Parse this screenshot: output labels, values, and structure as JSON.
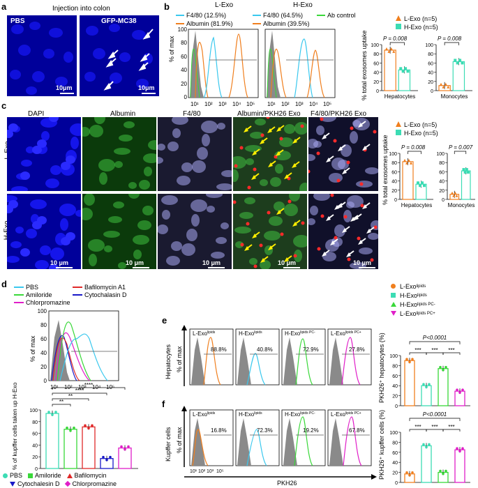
{
  "panels": {
    "a": {
      "label": "a",
      "title": "Injection into colon",
      "images": [
        {
          "label": "PBS",
          "scale": "10μm"
        },
        {
          "label": "GFP-MC38",
          "scale": "10μm"
        }
      ]
    },
    "b": {
      "label": "b",
      "flow": [
        {
          "title": "L-Exo",
          "legend": [
            "F4/80 (12.5%)",
            "Albumin (81.9%)"
          ]
        },
        {
          "title": "H-Exo",
          "legend": [
            "F4/80 (64.5%)",
            "Albumin  (39.5%)"
          ]
        }
      ],
      "ab_control": "Ab control",
      "ylabel": "% of max",
      "yticks": [
        "100",
        "80",
        "60",
        "40",
        "20",
        "0"
      ],
      "xticks": [
        "10¹",
        "10²",
        "10³",
        "10⁴",
        "10⁵"
      ],
      "legend": [
        "L-Exo (n=5)",
        "H-Exo (n=5)"
      ],
      "ylabel_bar": "% total exosomes uptake",
      "groups": [
        "Hepatocytes",
        "Monocytes"
      ],
      "pvals": [
        "P = 0.008",
        "P = 0.008"
      ],
      "yticks_left": [
        "100",
        "80",
        "60",
        "40",
        "20",
        "0"
      ],
      "yticks_right": [
        "100",
        "80",
        "60",
        "40",
        "20",
        "0"
      ]
    },
    "c": {
      "label": "c",
      "columns": [
        "DAPI",
        "Albumin",
        "F4/80",
        "Albumin/PKH26 Exo",
        "F4/80/PKH26 Exo"
      ],
      "rows": [
        "L-Exo",
        "H-Exo"
      ],
      "scale": "10 μm",
      "legend": [
        "L-Exo (n=5)",
        "H-Exo (n=5)"
      ],
      "ylabel_bar": "% total exosomes uptake",
      "groups": [
        "Hepatocytes",
        "Monocytes"
      ],
      "pvals": [
        "P = 0.008",
        "P = 0.007"
      ],
      "yticks_left": [
        "100",
        "80",
        "60",
        "40",
        "20",
        "0"
      ],
      "yticks_right": [
        "100",
        "80",
        "60",
        "40",
        "20",
        "0"
      ]
    },
    "d": {
      "label": "d",
      "legend": [
        "PBS",
        "Amiloride",
        "Chlorpromazine",
        "Bafilomycin A1",
        "Cytochalasin D"
      ],
      "ylabel": "% of max",
      "yticks": [
        "100",
        "80",
        "60",
        "40",
        "20",
        "0"
      ],
      "xticks": [
        "10¹",
        "10²",
        "10³",
        "10⁴",
        "10⁵"
      ],
      "bar_ylabel": "% of kupffer cells taken up H-Exo",
      "bar_yticks": [
        "100",
        "80",
        "60",
        "40",
        "20",
        "0"
      ],
      "sig": [
        "****",
        "****",
        "**",
        "**"
      ],
      "bottom_legend": [
        "PBS",
        "Amiloride",
        "Bafilomycin",
        "Cytochalesin  D",
        "Chlorpromazine"
      ]
    },
    "e": {
      "label": "e",
      "row_label": "Hepatocytes",
      "ylabel": "% of max",
      "hist": [
        {
          "title": "L-Exo",
          "sup": "lipids",
          "pct": "88.8%"
        },
        {
          "title": "H-Exo",
          "sup": "lipids",
          "pct": "40.8%"
        },
        {
          "title": "H-Exo",
          "sup": "lipids PC-",
          "pct": "72.9%"
        },
        {
          "title": "L-Exo",
          "sup": "lipids PC+",
          "pct": "27.8%"
        }
      ],
      "legend": [
        {
          "base": "L-Exo",
          "sup": "lipids"
        },
        {
          "base": "H-Exo",
          "sup": "lipids"
        },
        {
          "base": "H-Exo",
          "sup": "lipids PC-"
        },
        {
          "base": "L-Exo",
          "sup": "lipids PC+"
        }
      ],
      "pval": "P<0.0001",
      "sig": [
        "***",
        "***",
        "***"
      ],
      "bar_ylabel": "PKH26⁺ hepatocytes (%)",
      "yticks": [
        "100",
        "80",
        "60",
        "40",
        "20",
        "0"
      ]
    },
    "f": {
      "label": "f",
      "row_label": "Kupffer cells",
      "ylabel": "% of max",
      "xlabel": "PKH26",
      "xticks": [
        "10¹",
        "10²",
        "10³",
        "10⁵"
      ],
      "hist": [
        {
          "title": "L-Exo",
          "sup": "lipids",
          "pct": "16.8%"
        },
        {
          "title": "H-Exo",
          "sup": "lipids",
          "pct": "72.3%"
        },
        {
          "title": "H-Exo",
          "sup": "lipids PC-",
          "pct": "19.2%"
        },
        {
          "title": "L-Exo",
          "sup": "lipids PC+",
          "pct": "67.8%"
        }
      ],
      "pval": "P<0.0001",
      "sig": [
        "***",
        "***",
        "***"
      ],
      "bar_ylabel": "PKH26⁺ kupffer cells (%)",
      "yticks": [
        "100",
        "80",
        "60",
        "40",
        "20",
        "0"
      ]
    }
  },
  "colors": {
    "orange": "#f07f1e",
    "teal": "#3cdcb4",
    "cyan": "#39c8ee",
    "green": "#39d839",
    "magenta": "#e01ec8",
    "red": "#e02828",
    "blue": "#1818c8",
    "navy": "#00009a",
    "gray": "#8a8a8a"
  },
  "chart_data": [
    {
      "type": "bar",
      "panel": "b-hepatocytes",
      "categories": [
        "L-Exo",
        "H-Exo"
      ],
      "values": [
        88,
        45
      ],
      "ylim": [
        0,
        100
      ]
    },
    {
      "type": "bar",
      "panel": "b-monocytes",
      "categories": [
        "L-Exo",
        "H-Exo"
      ],
      "values": [
        11,
        63
      ],
      "ylim": [
        0,
        100
      ]
    },
    {
      "type": "bar",
      "panel": "c-hepatocytes",
      "categories": [
        "L-Exo",
        "H-Exo"
      ],
      "values": [
        82,
        33
      ],
      "ylim": [
        0,
        100
      ]
    },
    {
      "type": "bar",
      "panel": "c-monocytes",
      "categories": [
        "L-Exo",
        "H-Exo"
      ],
      "values": [
        11,
        62
      ],
      "ylim": [
        0,
        100
      ]
    },
    {
      "type": "bar",
      "panel": "d",
      "categories": [
        "PBS",
        "Amiloride",
        "Bafilomycin",
        "Cytochalesin  D",
        "Chlorpromazine"
      ],
      "values": [
        94,
        67,
        71,
        17,
        35
      ],
      "ylim": [
        0,
        100
      ]
    },
    {
      "type": "bar",
      "panel": "e",
      "categories": [
        "L-Exo lipids",
        "H-Exo lipids",
        "H-Exo lipids PC-",
        "L-Exo lipids PC+"
      ],
      "values": [
        90,
        40,
        74,
        29
      ],
      "ylim": [
        0,
        100
      ]
    },
    {
      "type": "bar",
      "panel": "f",
      "categories": [
        "L-Exo lipids",
        "H-Exo lipids",
        "H-Exo lipids PC-",
        "L-Exo lipids PC+"
      ],
      "values": [
        17,
        73,
        20,
        65
      ],
      "ylim": [
        0,
        100
      ]
    }
  ]
}
